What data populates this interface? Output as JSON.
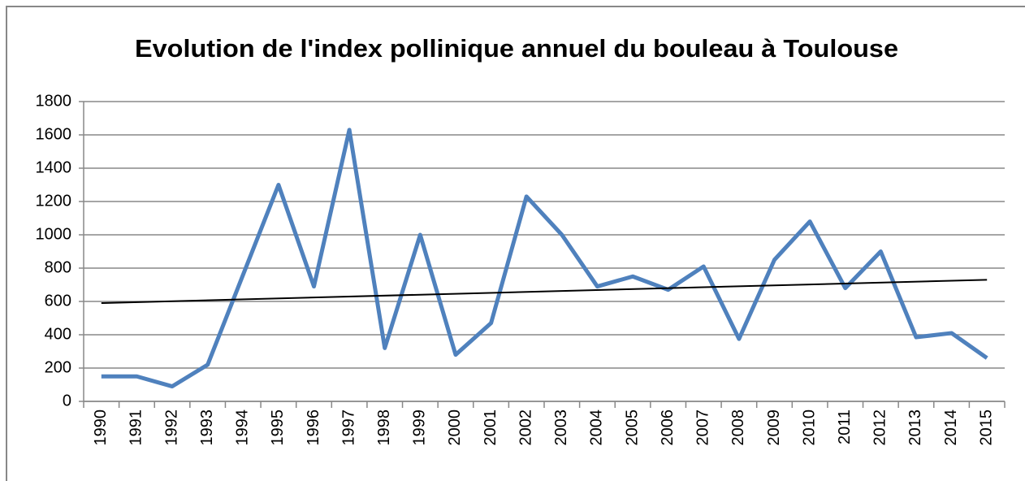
{
  "chart_data": {
    "type": "line",
    "title": "Evolution de l'index pollinique annuel du bouleau à Toulouse",
    "categories": [
      "1990",
      "1991",
      "1992",
      "1993",
      "1994",
      "1995",
      "1996",
      "1997",
      "1998",
      "1999",
      "2000",
      "2001",
      "2002",
      "2003",
      "2004",
      "2005",
      "2006",
      "2007",
      "2008",
      "2009",
      "2010",
      "2011",
      "2012",
      "2013",
      "2014",
      "2015"
    ],
    "series": [
      {
        "color": "#4f81bd",
        "values": [
          150,
          150,
          90,
          220,
          760,
          1300,
          690,
          1630,
          320,
          1000,
          280,
          470,
          1230,
          1000,
          690,
          750,
          670,
          810,
          375,
          850,
          1080,
          680,
          900,
          385,
          410,
          260
        ]
      }
    ],
    "trendline": {
      "color": "#000000",
      "values": [
        590,
        730
      ]
    },
    "ylim": [
      0,
      1800
    ],
    "yticks": [
      0,
      200,
      400,
      600,
      800,
      1000,
      1200,
      1400,
      1600,
      1800
    ],
    "grid": true
  }
}
